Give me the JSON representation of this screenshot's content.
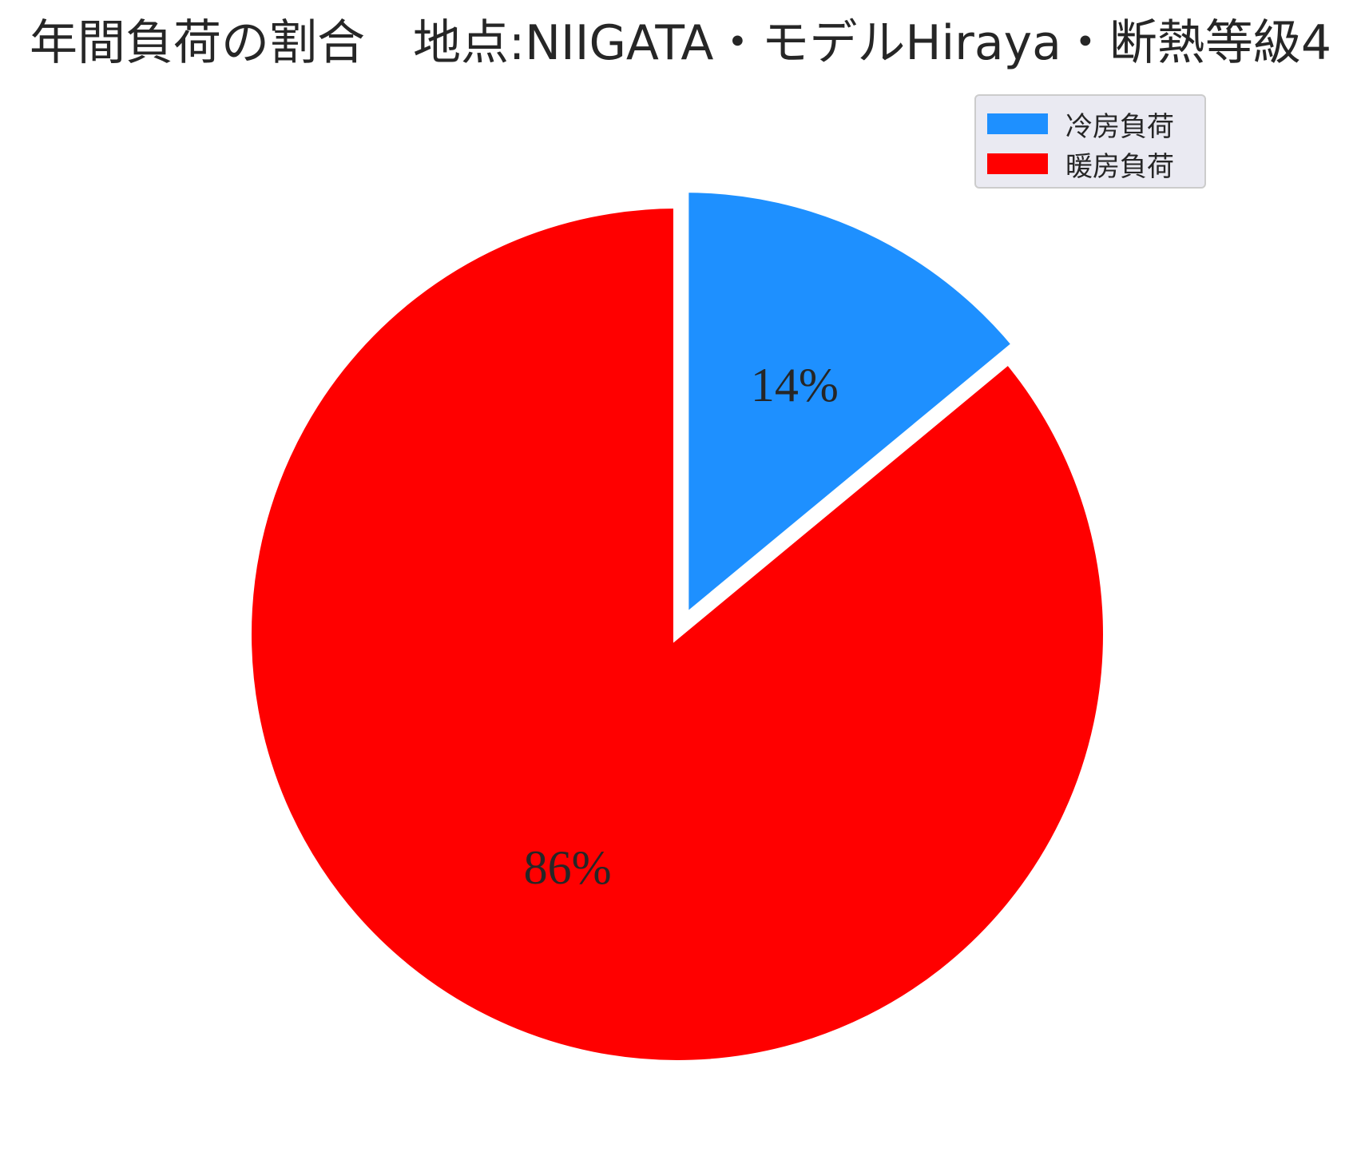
{
  "chart_data": {
    "type": "pie",
    "title": "年間負荷の割合　地点:NIIGATA・モデルHiraya・断熱等級4",
    "slices": [
      {
        "label": "冷房負荷",
        "value": 14,
        "pct_label": "14%",
        "color": "#1e90ff",
        "explode": true
      },
      {
        "label": "暖房負荷",
        "value": 86,
        "pct_label": "86%",
        "color": "#ff0000",
        "explode": false
      }
    ],
    "start_angle": "90° (12 o'clock)",
    "direction": "clockwise",
    "legend": {
      "placement": "top-right"
    }
  }
}
